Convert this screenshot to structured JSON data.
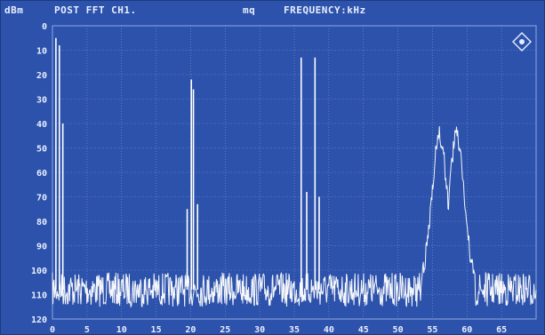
{
  "header": {
    "unit_label": "dBm",
    "mode_title": "POST FFT CH1.",
    "marker_label": "mq",
    "x_title": "FREQUENCY:kHz"
  },
  "colors": {
    "background": "#2c52ab",
    "grid": "#8fa8e0",
    "trace": "#ffffff",
    "text": "#e8eeff"
  },
  "icons": {
    "corner_logo": "rohde-schwarz-diamond-icon"
  },
  "chart_data": {
    "type": "line",
    "title": "POST FFT CH1.",
    "xlabel": "FREQUENCY:kHz",
    "ylabel": "dBm",
    "xlim": [
      0,
      70
    ],
    "ylim": [
      0,
      120
    ],
    "y_axis_inverted": true,
    "grid": true,
    "x_ticks": [
      "0",
      "5",
      "10",
      "15",
      "20",
      "25",
      "30",
      "35",
      "40",
      "45",
      "50",
      "55",
      "60",
      "65"
    ],
    "y_ticks": [
      "0",
      "10",
      "20",
      "30",
      "40",
      "50",
      "60",
      "70",
      "80",
      "90",
      "100",
      "110",
      "120"
    ],
    "series": [
      {
        "noise_floor_db": 108,
        "peaks": [
          {
            "x": 0.5,
            "y": 5
          },
          {
            "x": 1.0,
            "y": 8
          },
          {
            "x": 1.5,
            "y": 40
          },
          {
            "x": 19.5,
            "y": 75
          },
          {
            "x": 20.1,
            "y": 22
          },
          {
            "x": 20.4,
            "y": 26
          },
          {
            "x": 21.0,
            "y": 73
          },
          {
            "x": 36.0,
            "y": 13
          },
          {
            "x": 38.0,
            "y": 13
          },
          {
            "x": 36.8,
            "y": 68
          },
          {
            "x": 38.6,
            "y": 70
          }
        ],
        "band": {
          "x_start": 53.5,
          "x_end": 61.0,
          "peak_y": 45,
          "peaks_x": [
            56.0,
            58.5
          ],
          "dip_y": 55
        }
      }
    ]
  }
}
